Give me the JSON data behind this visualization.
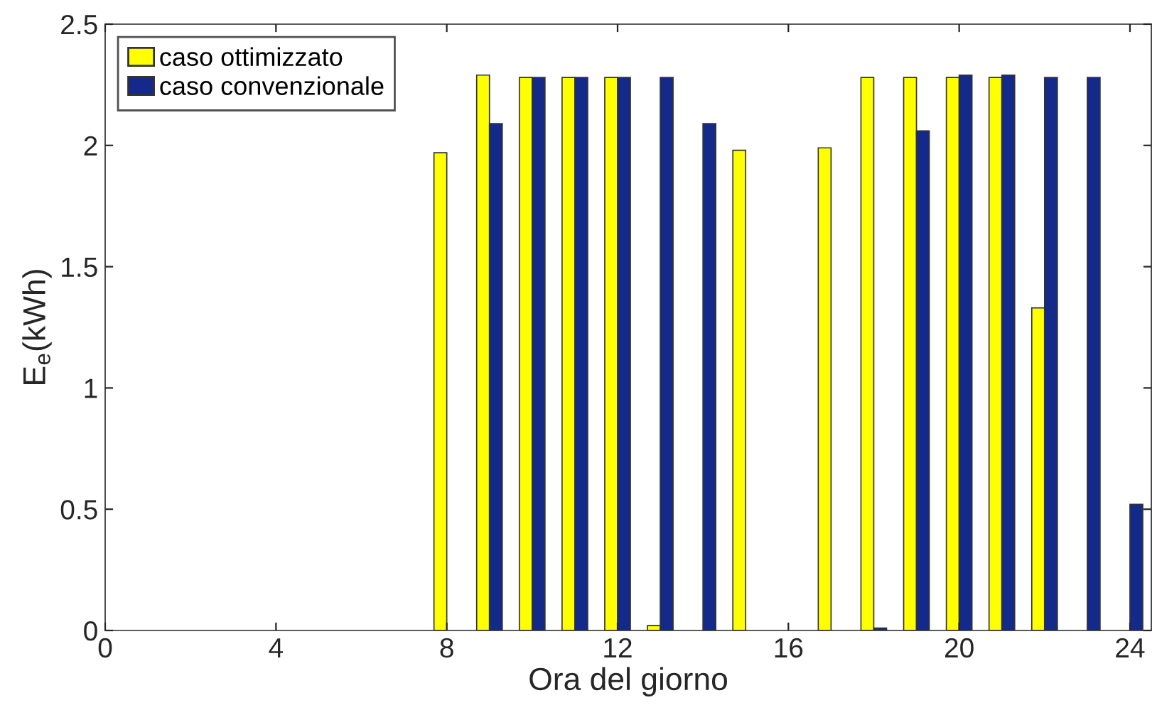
{
  "chart_data": {
    "type": "bar",
    "xlabel": "Ora del giorno",
    "ylabel": "E$_{e}$(kWh)",
    "x": [
      1,
      2,
      3,
      4,
      5,
      6,
      7,
      8,
      9,
      10,
      11,
      12,
      13,
      14,
      15,
      16,
      17,
      18,
      19,
      20,
      21,
      22,
      23,
      24
    ],
    "series": [
      {
        "name": "caso ottimizzato",
        "color": "#ffff00",
        "values": [
          0,
          0,
          0,
          0,
          0,
          0,
          0,
          1.97,
          2.29,
          2.28,
          2.28,
          2.28,
          0.02,
          0,
          1.98,
          0,
          1.99,
          2.28,
          2.28,
          2.28,
          2.28,
          1.33,
          0,
          0
        ]
      },
      {
        "name": "caso convenzionale",
        "color": "#142a8a",
        "values": [
          0,
          0,
          0,
          0,
          0,
          0,
          0,
          0,
          2.09,
          2.28,
          2.28,
          2.28,
          2.28,
          2.09,
          0,
          0,
          0,
          0.01,
          2.06,
          2.29,
          2.29,
          2.28,
          2.28,
          0.52
        ]
      }
    ],
    "xlim": [
      0,
      24.5
    ],
    "xticks": [
      0,
      4,
      8,
      12,
      16,
      20,
      24
    ],
    "ylim": [
      0,
      2.5
    ],
    "yticks": [
      0,
      0.5,
      1,
      1.5,
      2,
      2.5
    ],
    "grid": false,
    "legend": "top left"
  }
}
